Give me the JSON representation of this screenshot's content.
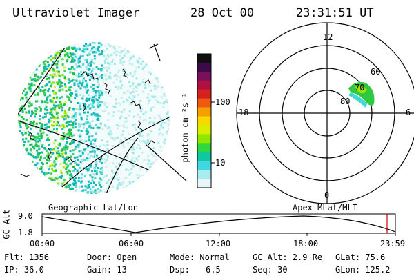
{
  "header": {
    "instrument": "Ultraviolet Imager",
    "date": "28 Oct 00",
    "time": "23:31:51 UT"
  },
  "colorbar": {
    "unit_label": "photon cm⁻²s⁻¹",
    "ticks": [
      "100",
      "10"
    ],
    "colors": [
      "#101010",
      "#3a0a4a",
      "#7a0f5a",
      "#b01040",
      "#d82020",
      "#f05a10",
      "#f5a000",
      "#f8d800",
      "#d8f000",
      "#8ee800",
      "#30d840",
      "#10c8a0",
      "#40d8e0",
      "#a8ecf0",
      "#e8f6f8"
    ]
  },
  "geo_panel": {
    "label": "Geographic Lat/Lon"
  },
  "polar_panel": {
    "label": "Apex MLat/MLT",
    "mlt_labels": [
      "12",
      "18",
      "6",
      "0"
    ],
    "mlat_labels": [
      "60",
      "70",
      "80"
    ]
  },
  "orbit_plot": {
    "y_label": "GC Alt",
    "y_ticks": [
      "9.0",
      "1.8"
    ],
    "x_ticks": [
      "00:00",
      "06:00",
      "12:00",
      "18:00",
      "23:59"
    ],
    "marker_color": "#cc0000"
  },
  "status": {
    "flt": "Flt: 1356",
    "ip": "IP: 36.0",
    "door": "Door: Open",
    "gain": "Gain: 13",
    "mode": "Mode: Normal",
    "dsp_label": "Dsp:",
    "dsp_value": "6.5",
    "gc_alt": "GC Alt: 2.9 Re",
    "seq": "Seq: 30",
    "glat": "GLat: 75.6",
    "glon": "GLon: 125.2"
  }
}
